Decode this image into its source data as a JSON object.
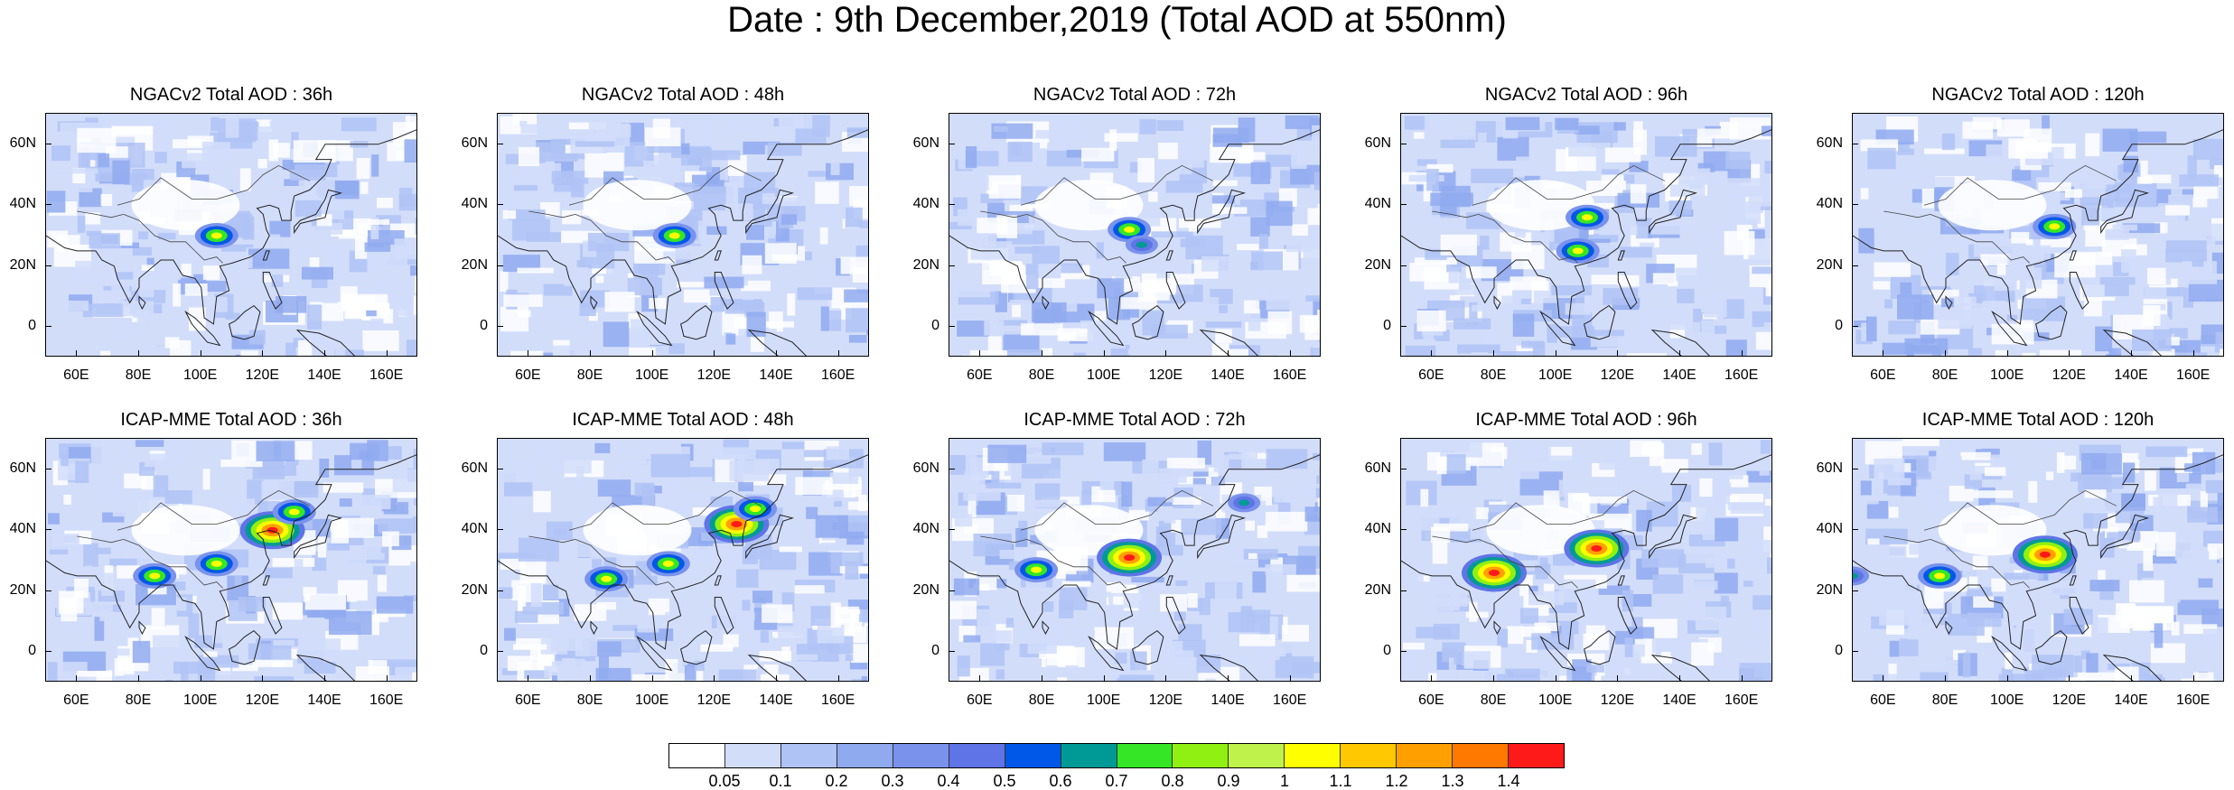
{
  "main_title": "Date : 9th December,2019 (Total AOD at 550nm)",
  "y_ticks": [
    "60N",
    "40N",
    "20N",
    "0"
  ],
  "x_ticks": [
    "60E",
    "80E",
    "100E",
    "120E",
    "140E",
    "160E"
  ],
  "rows": [
    {
      "model": "NGACv2",
      "panels": [
        {
          "title": "NGACv2 Total AOD : 36h",
          "hotspots": [
            {
              "lon": 105,
              "lat": 30,
              "level": "medium"
            }
          ]
        },
        {
          "title": "NGACv2 Total AOD : 48h",
          "hotspots": [
            {
              "lon": 107,
              "lat": 30,
              "level": "medium"
            }
          ]
        },
        {
          "title": "NGACv2 Total AOD : 72h",
          "hotspots": [
            {
              "lon": 108,
              "lat": 32,
              "level": "medium"
            },
            {
              "lon": 112,
              "lat": 27,
              "level": "low"
            }
          ]
        },
        {
          "title": "NGACv2 Total AOD : 96h",
          "hotspots": [
            {
              "lon": 110,
              "lat": 36,
              "level": "medium"
            },
            {
              "lon": 107,
              "lat": 25,
              "level": "medium"
            }
          ]
        },
        {
          "title": "NGACv2 Total AOD : 120h",
          "hotspots": [
            {
              "lon": 115,
              "lat": 33,
              "level": "medium"
            }
          ]
        }
      ]
    },
    {
      "model": "ICAP-MME",
      "panels": [
        {
          "title": "ICAP-MME Total AOD : 36h",
          "hotspots": [
            {
              "lon": 123,
              "lat": 40,
              "level": "high"
            },
            {
              "lon": 130,
              "lat": 46,
              "level": "medium"
            },
            {
              "lon": 85,
              "lat": 25,
              "level": "medium"
            },
            {
              "lon": 105,
              "lat": 29,
              "level": "medium"
            }
          ]
        },
        {
          "title": "ICAP-MME Total AOD : 48h",
          "hotspots": [
            {
              "lon": 127,
              "lat": 42,
              "level": "high"
            },
            {
              "lon": 133,
              "lat": 47,
              "level": "medium"
            },
            {
              "lon": 85,
              "lat": 24,
              "level": "medium"
            },
            {
              "lon": 105,
              "lat": 29,
              "level": "medium"
            }
          ]
        },
        {
          "title": "ICAP-MME Total AOD : 72h",
          "hotspots": [
            {
              "lon": 78,
              "lat": 27,
              "level": "medium"
            },
            {
              "lon": 108,
              "lat": 31,
              "level": "high"
            },
            {
              "lon": 145,
              "lat": 49,
              "level": "low"
            }
          ]
        },
        {
          "title": "ICAP-MME Total AOD : 96h",
          "hotspots": [
            {
              "lon": 80,
              "lat": 26,
              "level": "high"
            },
            {
              "lon": 113,
              "lat": 34,
              "level": "high"
            }
          ]
        },
        {
          "title": "ICAP-MME Total AOD : 120h",
          "hotspots": [
            {
              "lon": 78,
              "lat": 25,
              "level": "medium"
            },
            {
              "lon": 112,
              "lat": 32,
              "level": "high"
            },
            {
              "lon": 50,
              "lat": 25,
              "level": "low"
            }
          ]
        }
      ]
    }
  ],
  "colorbar": {
    "colors": [
      "#ffffff",
      "#d2ddfa",
      "#b0c3f5",
      "#90aaf0",
      "#7a92ec",
      "#5f74e6",
      "#0058e8",
      "#009a96",
      "#34e626",
      "#90f012",
      "#bff24a",
      "#ffff00",
      "#ffc800",
      "#ffa000",
      "#ff7800",
      "#ff1a1a"
    ],
    "labels": [
      "0.05",
      "0.1",
      "0.2",
      "0.3",
      "0.4",
      "0.5",
      "0.6",
      "0.7",
      "0.8",
      "0.9",
      "1",
      "1.1",
      "1.2",
      "1.3",
      "1.4"
    ]
  }
}
